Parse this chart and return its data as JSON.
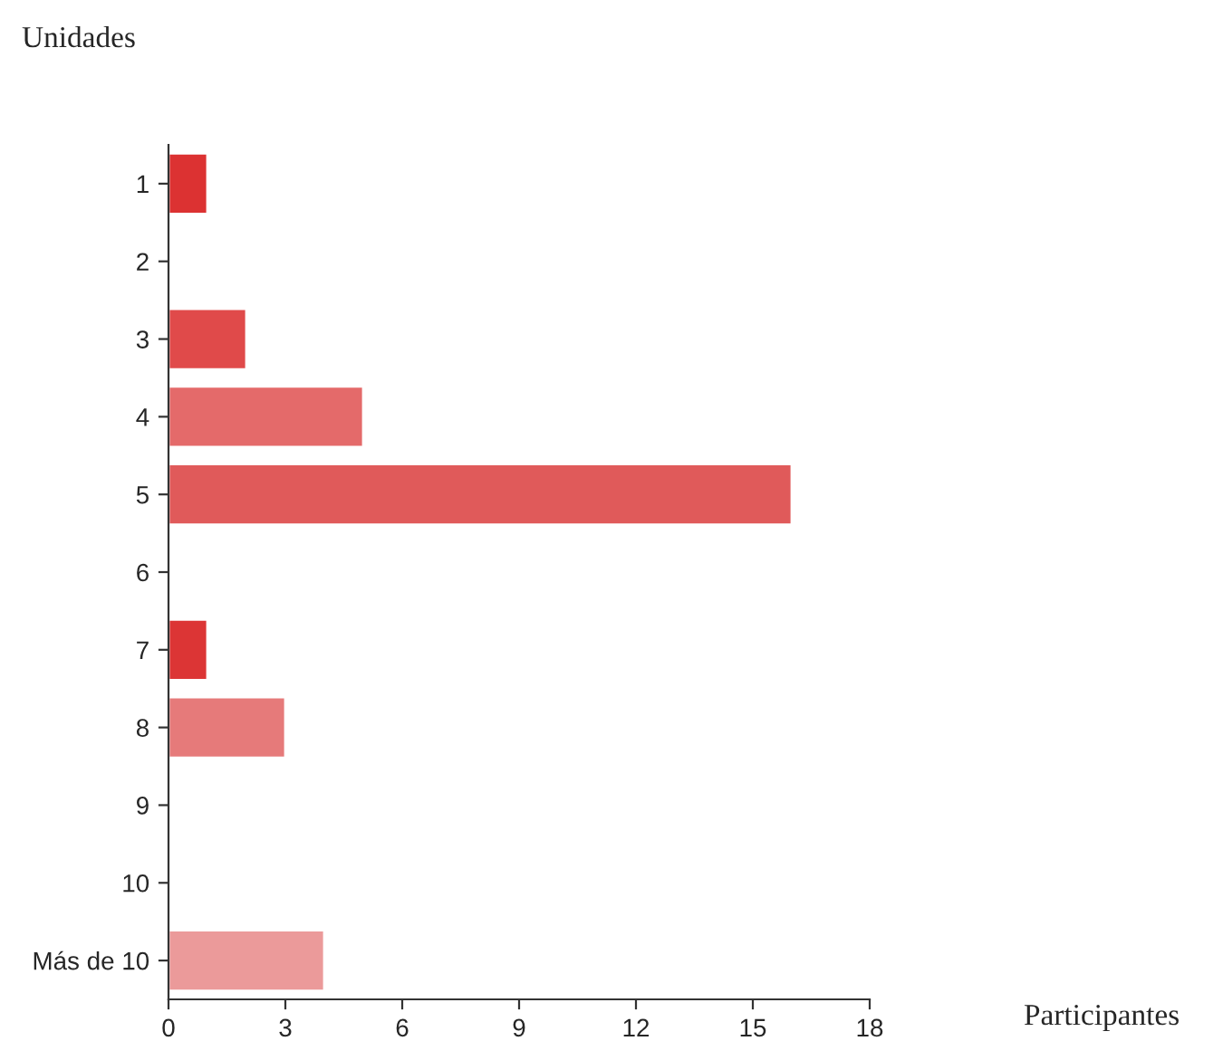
{
  "chart_data": {
    "type": "bar",
    "orientation": "horizontal",
    "xlabel": "Participantes",
    "ylabel": "Unidades",
    "categories": [
      "1",
      "2",
      "3",
      "4",
      "5",
      "6",
      "7",
      "8",
      "9",
      "10",
      "Más de 10"
    ],
    "values": [
      1,
      0,
      2,
      5,
      16,
      0,
      1,
      3,
      0,
      0,
      4
    ],
    "colors": [
      "#dc3232",
      null,
      "#e04a4a",
      "#e46a6a",
      "#e05a5a",
      null,
      "#dc3535",
      "#e67a7a",
      null,
      null,
      "#eb9a9a"
    ],
    "xlim": [
      0,
      18
    ],
    "xticks": [
      0,
      3,
      6,
      9,
      12,
      15,
      18
    ],
    "grid": false,
    "legend": false
  }
}
